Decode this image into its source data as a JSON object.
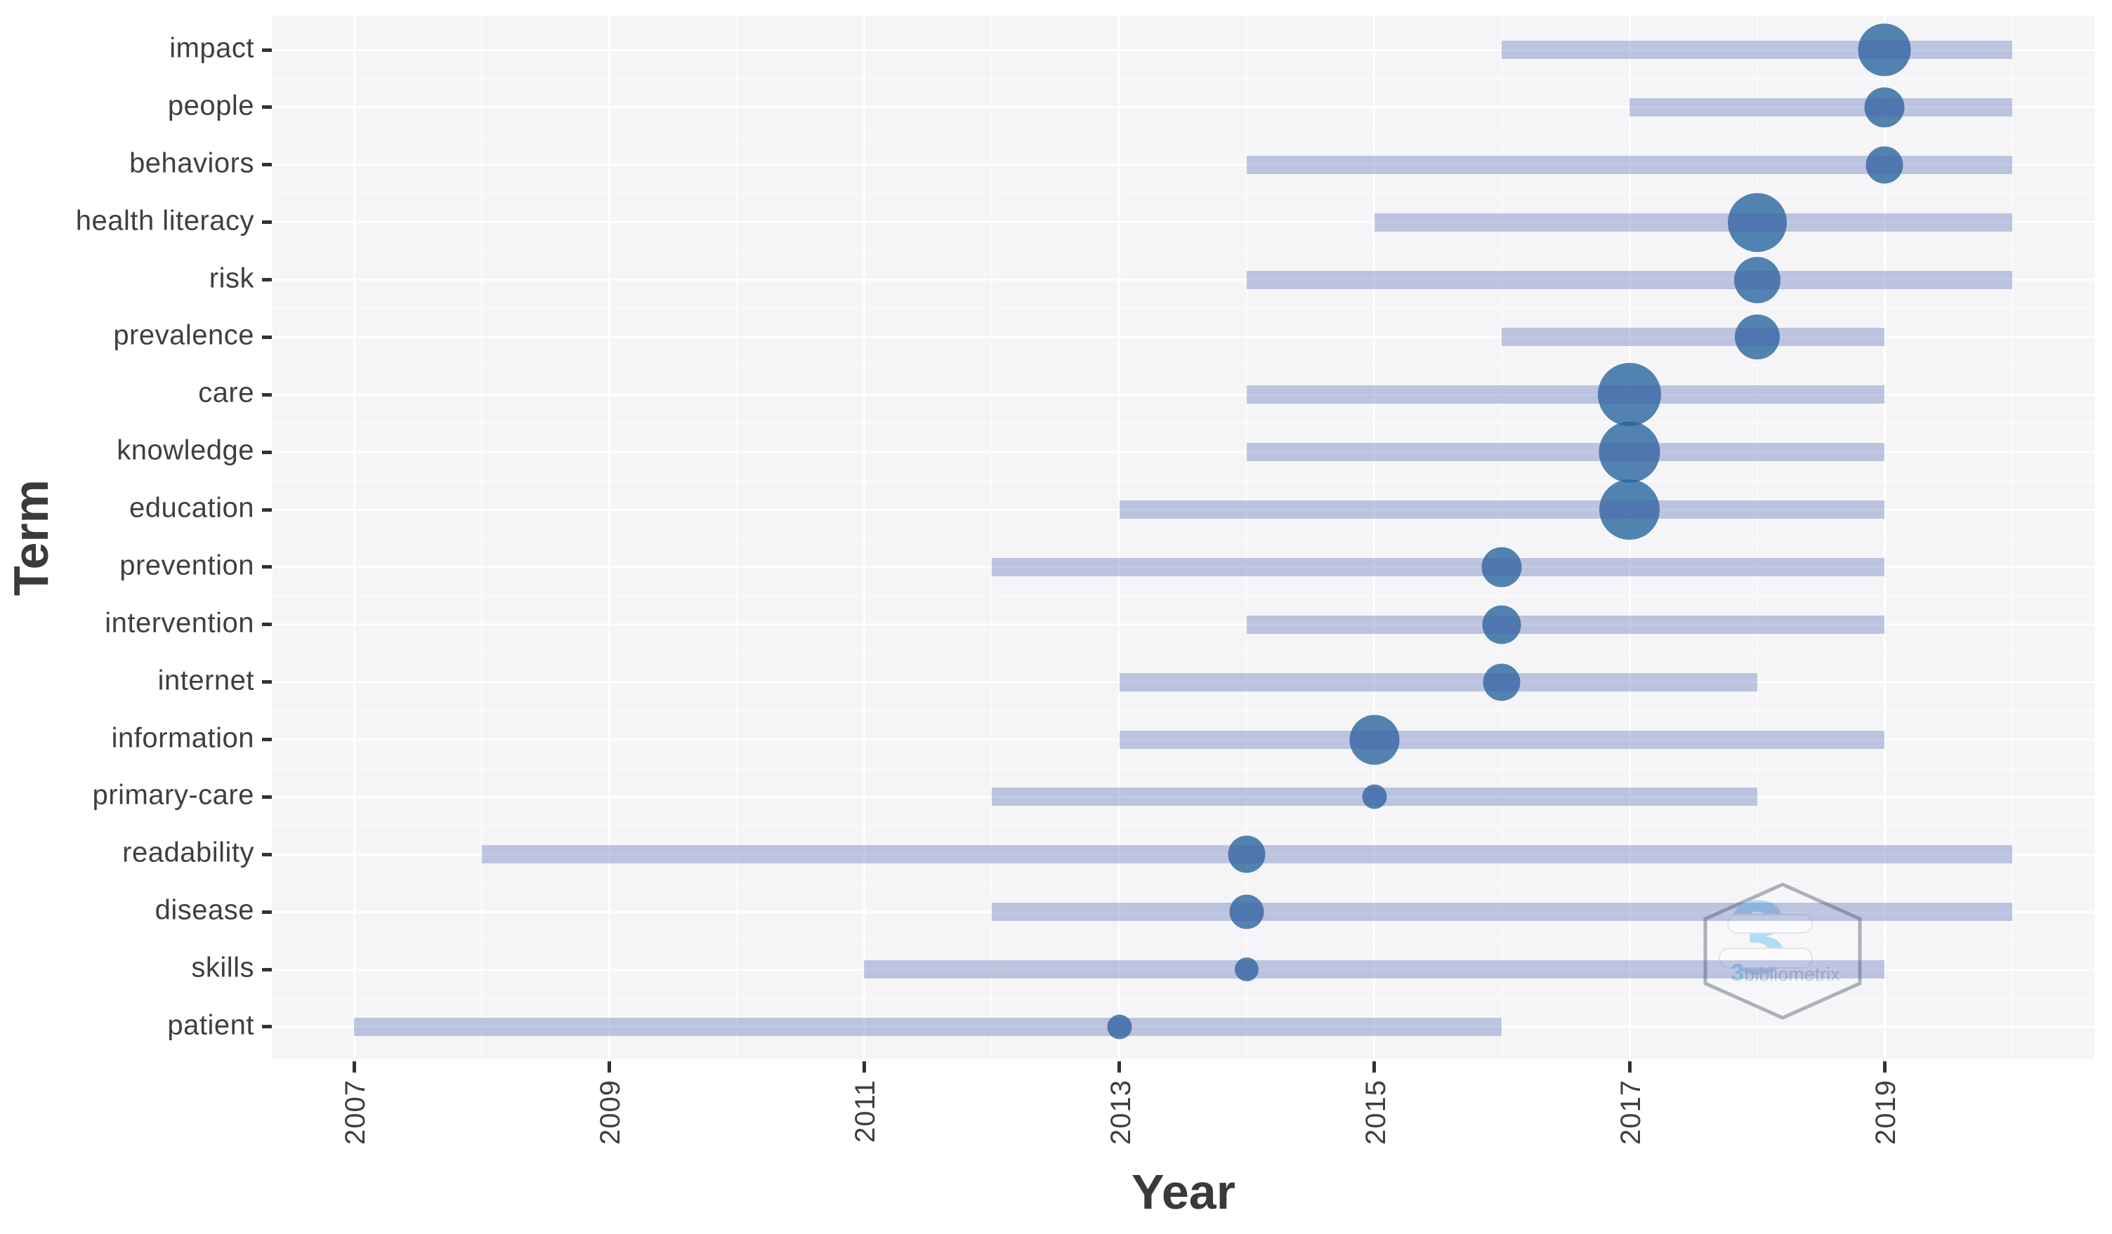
{
  "chart_data": {
    "type": "bubble-timeline",
    "title": "",
    "xlabel": "Year",
    "ylabel": "Term",
    "x_ticks": [
      2007,
      2009,
      2011,
      2013,
      2015,
      2017,
      2019
    ],
    "x_minor_ticks": [
      2008,
      2010,
      2012,
      2014,
      2016,
      2018,
      2020
    ],
    "x_domain": [
      2006.4,
      2020.6
    ],
    "grid": "on",
    "legend": "none",
    "terms": [
      {
        "label": "impact",
        "start": 2016,
        "peak": 2019,
        "end": 2020,
        "size": 75
      },
      {
        "label": "people",
        "start": 2017,
        "peak": 2019,
        "end": 2020,
        "size": 57
      },
      {
        "label": "behaviors",
        "start": 2014,
        "peak": 2019,
        "end": 2020,
        "size": 53
      },
      {
        "label": "health literacy",
        "start": 2015,
        "peak": 2018,
        "end": 2020,
        "size": 84
      },
      {
        "label": "risk",
        "start": 2014,
        "peak": 2018,
        "end": 2020,
        "size": 66
      },
      {
        "label": "prevalence",
        "start": 2016,
        "peak": 2018,
        "end": 2019,
        "size": 64
      },
      {
        "label": "care",
        "start": 2014,
        "peak": 2017,
        "end": 2019,
        "size": 90
      },
      {
        "label": "knowledge",
        "start": 2014,
        "peak": 2017,
        "end": 2019,
        "size": 87
      },
      {
        "label": "education",
        "start": 2013,
        "peak": 2017,
        "end": 2019,
        "size": 86
      },
      {
        "label": "prevention",
        "start": 2012,
        "peak": 2016,
        "end": 2019,
        "size": 57
      },
      {
        "label": "intervention",
        "start": 2014,
        "peak": 2016,
        "end": 2019,
        "size": 55
      },
      {
        "label": "internet",
        "start": 2013,
        "peak": 2016,
        "end": 2018,
        "size": 53
      },
      {
        "label": "information",
        "start": 2013,
        "peak": 2015,
        "end": 2019,
        "size": 71
      },
      {
        "label": "primary-care",
        "start": 2012,
        "peak": 2015,
        "end": 2018,
        "size": 35
      },
      {
        "label": "readability",
        "start": 2008,
        "peak": 2014,
        "end": 2020,
        "size": 53
      },
      {
        "label": "disease",
        "start": 2012,
        "peak": 2014,
        "end": 2020,
        "size": 49
      },
      {
        "label": "skills",
        "start": 2011,
        "peak": 2014,
        "end": 2019,
        "size": 34
      },
      {
        "label": "patient",
        "start": 2007,
        "peak": 2013,
        "end": 2016,
        "size": 35
      }
    ],
    "colors": {
      "panel_bg": "#f5f5f7",
      "grid": "#ffffff",
      "range_line": "#495fac",
      "range_line_alpha": 0.33,
      "bubble": "#24629b",
      "bubble_alpha": 0.78,
      "axis_text": "#3f3f3f",
      "tick_mark": "#333333"
    }
  },
  "watermark": {
    "glyph": "3",
    "text": "bibliometrix",
    "blue": "#a5d9f3",
    "text_gray": "#c3c7d2",
    "hex_stroke": "#aeafb7"
  }
}
